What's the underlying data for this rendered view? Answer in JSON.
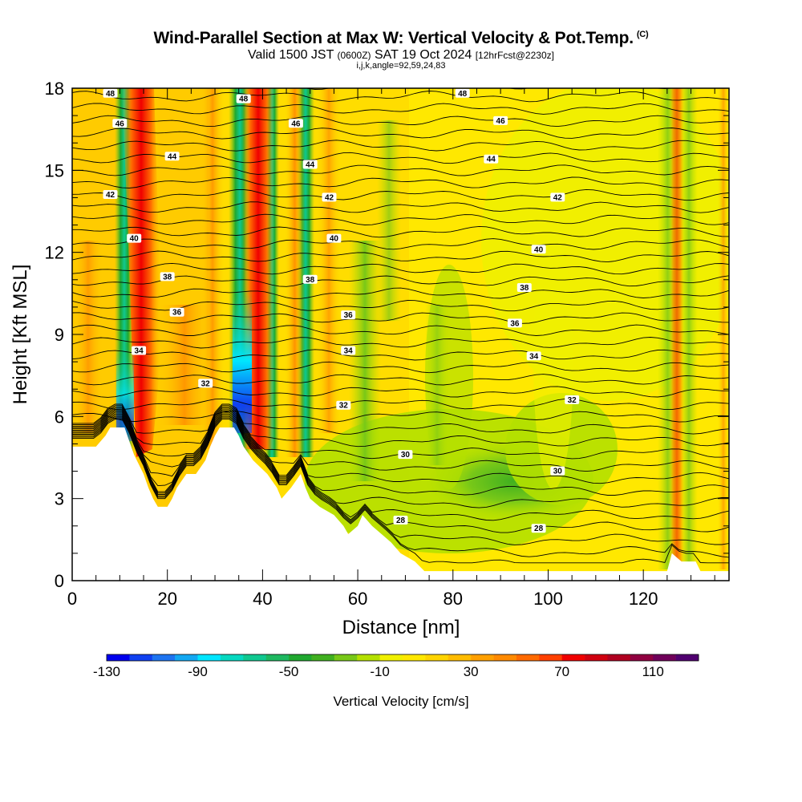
{
  "header": {
    "title": "Wind-Parallel Section at Max W: Vertical Velocity & Pot.Temp.",
    "copyright": "(C)",
    "valid_prefix": "Valid 1500 JST",
    "valid_utc": "(0600Z)",
    "valid_date": "SAT 19 Oct 2024",
    "forecast": "[12hrFcst@2230z]",
    "indices": "i,j,k,angle=92,59,24,83"
  },
  "chart_data": {
    "type": "heatmap",
    "xlabel": "Distance [nm]",
    "ylabel": "Height [Kft MSL]",
    "xlim": [
      0,
      138
    ],
    "ylim": [
      0,
      18
    ],
    "x_ticks": [
      "0",
      "20",
      "40",
      "60",
      "80",
      "100",
      "120"
    ],
    "y_ticks": [
      "0",
      "3",
      "6",
      "9",
      "12",
      "15",
      "18"
    ],
    "colorbar": {
      "label": "Vertical Velocity [cm/s]",
      "range": [
        -130,
        130
      ],
      "step": 10,
      "tick_labels": [
        "-130",
        "-90",
        "-50",
        "-10",
        "30",
        "70",
        "110"
      ],
      "colors": [
        "#0000ee",
        "#1040f0",
        "#1e74f0",
        "#13a8f2",
        "#00e6ff",
        "#06d8c0",
        "#10c890",
        "#1eb860",
        "#20a830",
        "#40b020",
        "#78c818",
        "#b4e000",
        "#f0f000",
        "#ffe800",
        "#ffd400",
        "#ffbc00",
        "#ffa000",
        "#ff8a00",
        "#ff6a00",
        "#ff4000",
        "#f00000",
        "#d00010",
        "#b00020",
        "#900040",
        "#70005a",
        "#500070"
      ]
    },
    "contour_field": "Potential temperature",
    "contour_labels": [
      "48",
      "46",
      "44",
      "42",
      "40",
      "38",
      "36",
      "34",
      "32",
      "30",
      "28"
    ],
    "updraft_bands_nm": [
      13,
      21,
      31,
      36,
      128
    ],
    "downdraft_bands_nm": [
      11,
      34,
      38,
      60
    ],
    "terrain_kft": [
      [
        0,
        4.9
      ],
      [
        5,
        4.9
      ],
      [
        7,
        5.3
      ],
      [
        8,
        5.6
      ],
      [
        11,
        5.6
      ],
      [
        12,
        5.1
      ],
      [
        13,
        4.6
      ],
      [
        15,
        3.9
      ],
      [
        16,
        3.4
      ],
      [
        17,
        3.0
      ],
      [
        18,
        2.7
      ],
      [
        20,
        2.7
      ],
      [
        21,
        3.0
      ],
      [
        22,
        3.4
      ],
      [
        24,
        3.9
      ],
      [
        26,
        3.9
      ],
      [
        28,
        4.4
      ],
      [
        29,
        4.9
      ],
      [
        30,
        5.3
      ],
      [
        31,
        5.6
      ],
      [
        34,
        5.6
      ],
      [
        35,
        5.3
      ],
      [
        36,
        4.9
      ],
      [
        38,
        4.4
      ],
      [
        41,
        3.9
      ],
      [
        43,
        3.4
      ],
      [
        44,
        3.0
      ],
      [
        46,
        3.4
      ],
      [
        48,
        3.9
      ],
      [
        49,
        3.4
      ],
      [
        50,
        3.0
      ],
      [
        52,
        2.7
      ],
      [
        55,
        2.4
      ],
      [
        57,
        2.0
      ],
      [
        58,
        1.7
      ],
      [
        60,
        2.0
      ],
      [
        61,
        2.4
      ],
      [
        63,
        2.0
      ],
      [
        65,
        1.7
      ],
      [
        67,
        1.4
      ],
      [
        69,
        1.0
      ],
      [
        72,
        0.7
      ],
      [
        74,
        0.35
      ],
      [
        76,
        0.35
      ],
      [
        80,
        0.35
      ],
      [
        100,
        0.35
      ],
      [
        120,
        0.35
      ],
      [
        125,
        0.35
      ],
      [
        126,
        1.0
      ],
      [
        128,
        0.7
      ],
      [
        131,
        0.7
      ],
      [
        132,
        0.35
      ],
      [
        137,
        0.35
      ],
      [
        138,
        0.35
      ]
    ]
  }
}
